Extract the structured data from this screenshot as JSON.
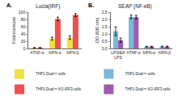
{
  "chart_data": [
    {
      "type": "bar",
      "title": "Lucia(IRF)",
      "annotations": [
        "A."
      ],
      "ylabel": "Fold-increase",
      "categories": [
        "hTNF-α",
        "hIFN-α",
        "hIFN-β"
      ],
      "series": [
        {
          "name": "THP1-Dual™ cells",
          "color": "#f0e040",
          "values": [
            2,
            27,
            30
          ],
          "errors": [
            0.5,
            4,
            5
          ]
        },
        {
          "name": "THP1-Dual™ KO-IRF3 cells",
          "color": "#f05050",
          "values": [
            2,
            81,
            92
          ],
          "errors": [
            0.5,
            5,
            4
          ]
        }
      ],
      "ylim": [
        0,
        100
      ],
      "yticks": [
        0,
        20,
        40,
        60,
        80,
        100
      ],
      "grid": false,
      "legend": "below"
    },
    {
      "type": "bar",
      "title": "SEAP (NF-κB)",
      "annotations": [
        "B."
      ],
      "ylabel": "OD (630 nm)",
      "categories": [
        "LPS/EK\nLPS",
        "hTNF-α",
        "hIFN-α",
        "hIFN-β"
      ],
      "series": [
        {
          "name": "THP1-Dual™ cells",
          "color": "#7ab8d8",
          "values": [
            1.18,
            2.17,
            0.12,
            0.13
          ],
          "errors": [
            0.3,
            0.12,
            0.03,
            0.03
          ]
        },
        {
          "name": "THP1-Dual™ KO-IRF3 cells",
          "color": "#a05ab0",
          "values": [
            0.57,
            2.15,
            0.12,
            0.13
          ],
          "errors": [
            0.15,
            0.12,
            0.03,
            0.03
          ]
        }
      ],
      "ylim": [
        0,
        2.5
      ],
      "yticks": [
        {
          "value": 0.0,
          "label": "0.0"
        },
        0.5,
        {
          "value": 1.0,
          "label": "1.0"
        },
        1.5,
        {
          "value": 2.0,
          "label": "2.0"
        },
        2.5
      ],
      "grid": false,
      "legend": "below"
    }
  ]
}
